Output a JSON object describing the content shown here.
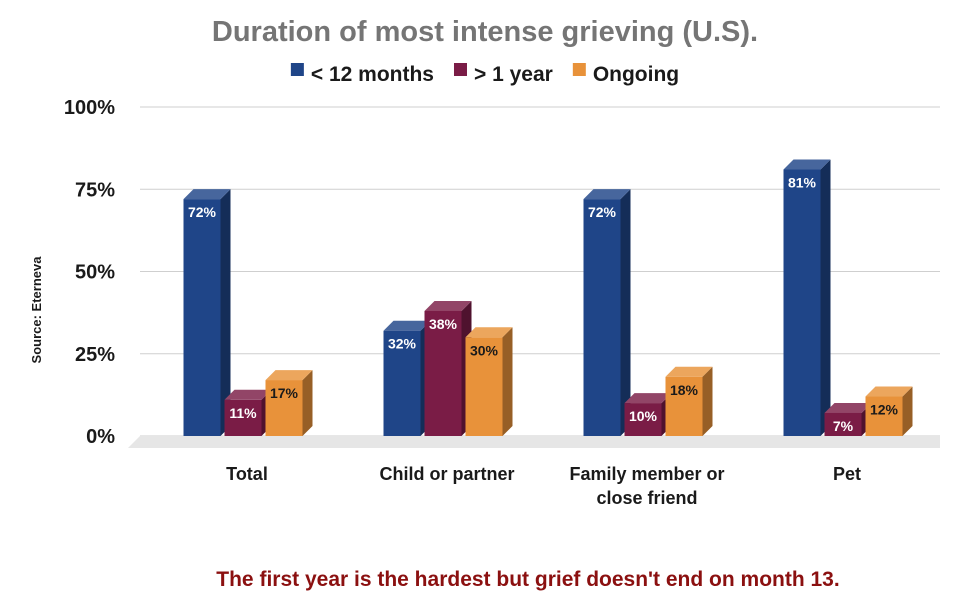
{
  "chart_data": {
    "type": "bar",
    "title": "Duration of most intense grieving (U.S).",
    "ylabel": "Source: Eterneva",
    "xlabel": "",
    "categories": [
      [
        "Total"
      ],
      [
        "Child or partner"
      ],
      [
        "Family member or",
        "close friend"
      ],
      [
        "Pet"
      ]
    ],
    "series": [
      {
        "name": "< 12 months",
        "color": "#1f4588",
        "values": [
          72,
          32,
          72,
          81
        ],
        "labels": [
          "72%",
          "32%",
          "72%",
          "81%"
        ],
        "label_color": "#ffffff"
      },
      {
        "name": "> 1 year",
        "color": "#7a1c46",
        "values": [
          11,
          38,
          10,
          7
        ],
        "labels": [
          "11%",
          "38%",
          "10%",
          "7%"
        ],
        "label_color": "#ffffff"
      },
      {
        "name": "Ongoing",
        "color": "#e8923a",
        "values": [
          17,
          30,
          18,
          12
        ],
        "labels": [
          "17%",
          "30%",
          "18%",
          "12%"
        ],
        "label_color": "#1a1a1a"
      }
    ],
    "ylim": [
      0,
      100
    ],
    "yticks": [
      0,
      25,
      50,
      75,
      100
    ],
    "ytick_labels": [
      "0%",
      "25%",
      "50%",
      "75%",
      "100%"
    ],
    "grid": true,
    "legend_position": "top",
    "style": "3d-column"
  },
  "footnote": "The first year is the hardest but grief doesn't end on month 13."
}
